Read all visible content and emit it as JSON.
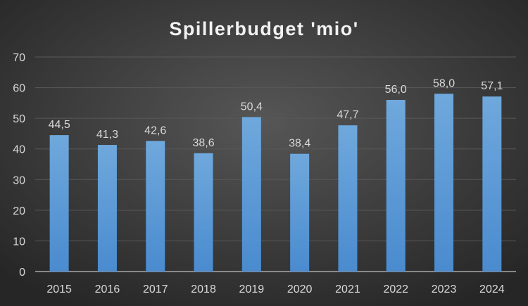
{
  "chart_data": {
    "type": "bar",
    "title": "Spillerbudget 'mio'",
    "xlabel": "",
    "ylabel": "",
    "categories": [
      "2015",
      "2016",
      "2017",
      "2018",
      "2019",
      "2020",
      "2021",
      "2022",
      "2023",
      "2024"
    ],
    "values": [
      44.5,
      41.3,
      42.6,
      38.6,
      50.4,
      38.4,
      47.7,
      56.0,
      58.0,
      57.1
    ],
    "data_labels": [
      "44,5",
      "41,3",
      "42,6",
      "38,6",
      "50,4",
      "38,4",
      "47,7",
      "56,0",
      "58,0",
      "57,1"
    ],
    "ylim": [
      0,
      70
    ],
    "yticks": [
      "0",
      "10",
      "20",
      "30",
      "40",
      "50",
      "60",
      "70"
    ],
    "grid": true,
    "legend": "none",
    "colors": {
      "bar_top": "#6fa8dc",
      "bar_bottom": "#4a8bcf",
      "grid": "#595959",
      "axis": "#a6a6a6"
    }
  }
}
